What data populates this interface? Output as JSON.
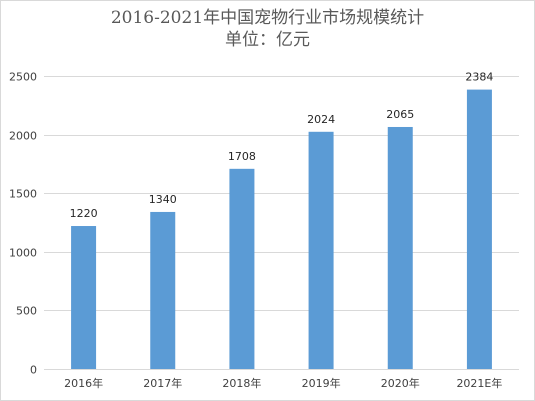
{
  "chart_data": {
    "type": "bar",
    "title": "2016-2021年中国宠物行业市场规模统计",
    "subtitle": "单位：亿元",
    "xlabel": "",
    "ylabel": "",
    "categories": [
      "2016年",
      "2017年",
      "2018年",
      "2019年",
      "2020年",
      "2021E年"
    ],
    "values": [
      1220,
      1340,
      1708,
      2024,
      2065,
      2384
    ],
    "ylim": [
      0,
      2500
    ],
    "yticks": [
      0,
      500,
      1000,
      1500,
      2000,
      2500
    ],
    "grid": true,
    "legend": "none",
    "data_labels": true,
    "colors": {
      "bar": "#5b9bd5",
      "grid": "#d9d9d9",
      "text": "#404040"
    }
  }
}
